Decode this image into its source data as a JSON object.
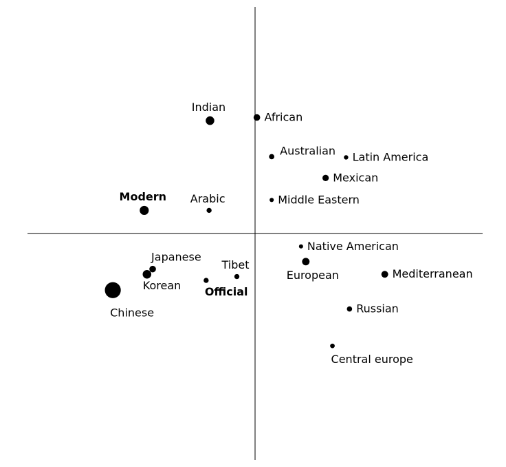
{
  "chart_data": {
    "type": "scatter",
    "title": "",
    "xlabel": "",
    "ylabel": "",
    "grid": false,
    "legend": "none",
    "xlim": [
      -1.0,
      1.0
    ],
    "ylim": [
      -1.0,
      1.0
    ],
    "point_color": "#000000",
    "axis_color": "#000000",
    "points": [
      {
        "label": "Indian",
        "x": -0.198,
        "y": 0.498,
        "size": 0.78,
        "bold": false,
        "label_pos": "above"
      },
      {
        "label": "African",
        "x": 0.008,
        "y": 0.512,
        "size": 0.6,
        "bold": false,
        "label_pos": "right"
      },
      {
        "label": "Australian",
        "x": 0.073,
        "y": 0.339,
        "size": 0.48,
        "bold": false,
        "label_pos": "above-right"
      },
      {
        "label": "Latin America",
        "x": 0.4,
        "y": 0.336,
        "size": 0.4,
        "bold": false,
        "label_pos": "right"
      },
      {
        "label": "Mexican",
        "x": 0.31,
        "y": 0.245,
        "size": 0.58,
        "bold": false,
        "label_pos": "right"
      },
      {
        "label": "Middle Eastern",
        "x": 0.073,
        "y": 0.148,
        "size": 0.38,
        "bold": false,
        "label_pos": "right"
      },
      {
        "label": "Modern",
        "x": -0.487,
        "y": 0.102,
        "size": 0.82,
        "bold": true,
        "label_pos": "above"
      },
      {
        "label": "Arabic",
        "x": -0.202,
        "y": 0.102,
        "size": 0.46,
        "bold": false,
        "label_pos": "above"
      },
      {
        "label": "Native American",
        "x": 0.202,
        "y": -0.057,
        "size": 0.38,
        "bold": false,
        "label_pos": "right"
      },
      {
        "label": "European",
        "x": 0.223,
        "y": -0.124,
        "size": 0.68,
        "bold": false,
        "label_pos": "below"
      },
      {
        "label": "Mediterranean",
        "x": 0.57,
        "y": -0.18,
        "size": 0.62,
        "bold": false,
        "label_pos": "right"
      },
      {
        "label": "Japanese",
        "x": -0.45,
        "y": -0.157,
        "size": 0.6,
        "bold": false,
        "label_pos": "above-right"
      },
      {
        "label": "Korean",
        "x": -0.475,
        "y": -0.18,
        "size": 0.78,
        "bold": false,
        "label_pos": "below-right"
      },
      {
        "label": "Tibet",
        "x": -0.08,
        "y": -0.19,
        "size": 0.46,
        "bold": false,
        "label_pos": "above"
      },
      {
        "label": "Official",
        "x": -0.215,
        "y": -0.207,
        "size": 0.46,
        "bold": true,
        "label_pos": "below-right"
      },
      {
        "label": "Chinese",
        "x": -0.625,
        "y": -0.25,
        "size": 1.45,
        "bold": false,
        "label_pos": "below-right"
      },
      {
        "label": "Russian",
        "x": 0.415,
        "y": -0.333,
        "size": 0.48,
        "bold": false,
        "label_pos": "right"
      },
      {
        "label": "Central europe",
        "x": 0.34,
        "y": -0.496,
        "size": 0.42,
        "bold": false,
        "label_pos": "below-right"
      }
    ]
  }
}
